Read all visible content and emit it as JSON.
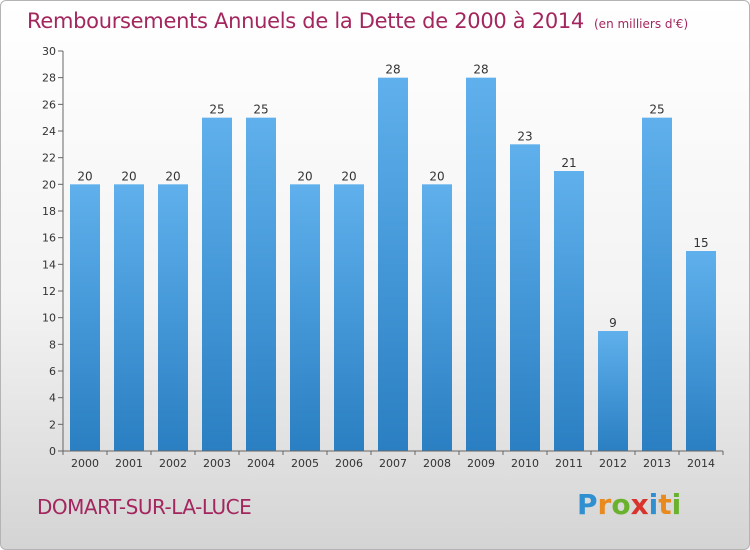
{
  "header": {
    "title": "Remboursements Annuels de la Dette de 2000 à 2014",
    "unit": "(en milliers d'€)"
  },
  "footer": {
    "commune": "DOMART-SUR-LA-LUCE",
    "brand_letters": [
      {
        "char": "P",
        "color": "#2f8fd0"
      },
      {
        "char": "r",
        "color": "#e98a1e"
      },
      {
        "char": "o",
        "color": "#6ab22e"
      },
      {
        "char": "x",
        "color": "#d8342c"
      },
      {
        "char": "i",
        "color": "#2f8fd0"
      },
      {
        "char": "t",
        "color": "#e98a1e"
      },
      {
        "char": "i",
        "color": "#6ab22e"
      }
    ]
  },
  "chart_data": {
    "type": "bar",
    "title": "Remboursements Annuels de la Dette de 2000 à 2014",
    "subtitle": "(en milliers d'€)",
    "categories": [
      "2000",
      "2001",
      "2002",
      "2003",
      "2004",
      "2005",
      "2006",
      "2007",
      "2008",
      "2009",
      "2010",
      "2011",
      "2012",
      "2013",
      "2014"
    ],
    "values": [
      20,
      20,
      20,
      25,
      25,
      20,
      20,
      28,
      20,
      28,
      23,
      21,
      9,
      25,
      15
    ],
    "ylim": [
      0,
      30
    ],
    "yticks": [
      0,
      2,
      4,
      6,
      8,
      10,
      12,
      14,
      16,
      18,
      20,
      22,
      24,
      26,
      28,
      30
    ],
    "grid": false,
    "legend": "none",
    "bar_color_top": "#5fb0ec",
    "bar_color_bottom": "#2a7fc2"
  }
}
